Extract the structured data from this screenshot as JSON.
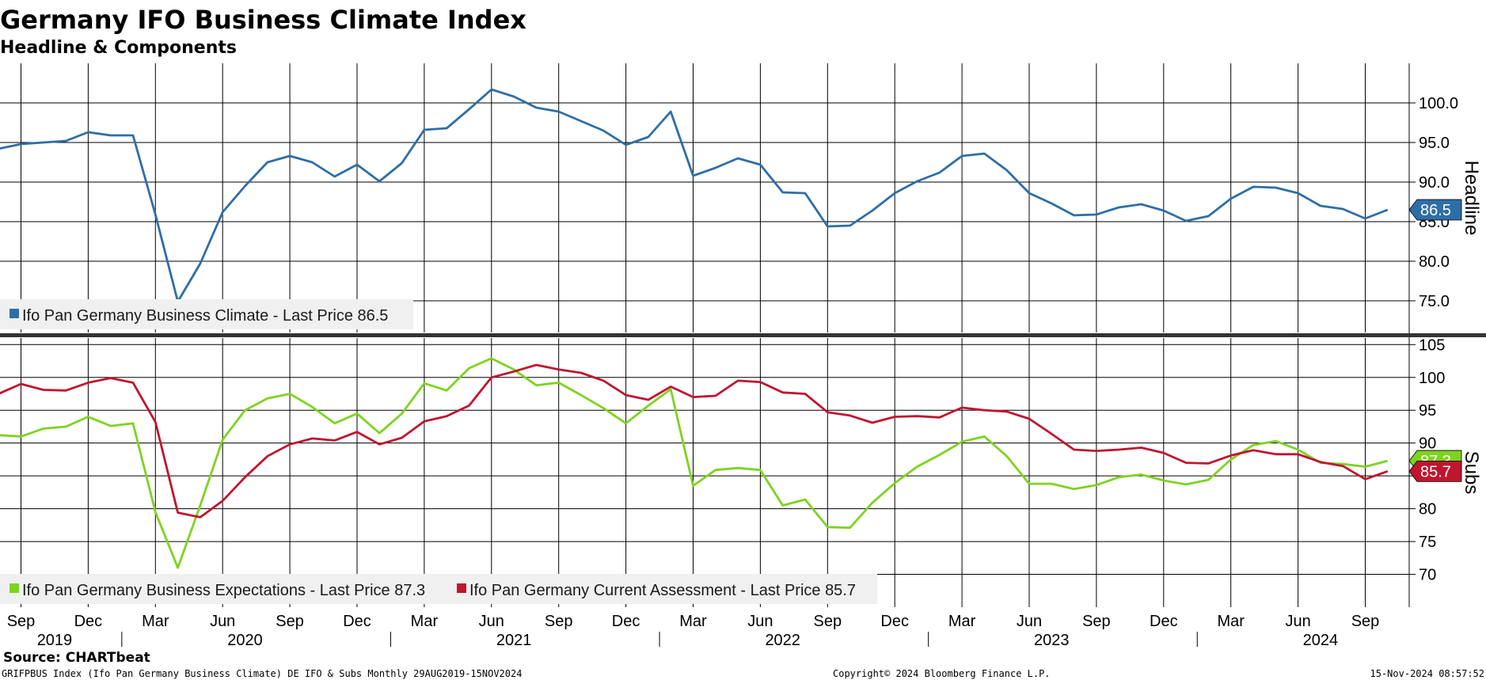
{
  "header": {
    "title": "Germany IFO Business Climate Index",
    "subtitle": "Headline & Components"
  },
  "footer": {
    "source": "Source: CHARTbeat",
    "ticker": "GRIFPBUS Index (Ifo Pan Germany Business Climate) DE IFO & Subs  Monthly 29AUG2019-15NOV2024",
    "copyright": "Copyright© 2024 Bloomberg Finance L.P.",
    "timestamp": "15-Nov-2024 08:57:52"
  },
  "colors": {
    "climate": "#2e6ea6",
    "expectations": "#7ed321",
    "assessment": "#c0152f",
    "grid": "#000000"
  },
  "x_axis": {
    "months": [
      "Sep",
      "Dec",
      "Mar",
      "Jun",
      "Sep",
      "Dec",
      "Mar",
      "Jun",
      "Sep",
      "Dec",
      "Mar",
      "Jun",
      "Sep",
      "Dec",
      "Mar",
      "Jun",
      "Sep",
      "Dec",
      "Mar",
      "Jun",
      "Sep"
    ],
    "years": [
      "2019",
      "2020",
      "2021",
      "2022",
      "2023",
      "2024"
    ]
  },
  "chart_data": [
    {
      "type": "line",
      "panel": "top",
      "ylabel": "Headline",
      "ylim": [
        71,
        105
      ],
      "yticks": [
        "75.0",
        "80.0",
        "85.0",
        "90.0",
        "95.0",
        "100.0"
      ],
      "x": [
        "2019-08",
        "2019-09",
        "2019-10",
        "2019-11",
        "2019-12",
        "2020-01",
        "2020-02",
        "2020-03",
        "2020-04",
        "2020-05",
        "2020-06",
        "2020-07",
        "2020-08",
        "2020-09",
        "2020-10",
        "2020-11",
        "2020-12",
        "2021-01",
        "2021-02",
        "2021-03",
        "2021-04",
        "2021-05",
        "2021-06",
        "2021-07",
        "2021-08",
        "2021-09",
        "2021-10",
        "2021-11",
        "2021-12",
        "2022-01",
        "2022-02",
        "2022-03",
        "2022-04",
        "2022-05",
        "2022-06",
        "2022-07",
        "2022-08",
        "2022-09",
        "2022-10",
        "2022-11",
        "2022-12",
        "2023-01",
        "2023-02",
        "2023-03",
        "2023-04",
        "2023-05",
        "2023-06",
        "2023-07",
        "2023-08",
        "2023-09",
        "2023-10",
        "2023-11",
        "2023-12",
        "2024-01",
        "2024-02",
        "2024-03",
        "2024-04",
        "2024-05",
        "2024-06",
        "2024-07",
        "2024-08",
        "2024-09",
        "2024-10"
      ],
      "series": [
        {
          "name": "Ifo Pan Germany Business Climate",
          "legend": "Ifo Pan Germany Business Climate - Last Price 86.5",
          "last": "86.5",
          "values": [
            94.2,
            94.8,
            95.0,
            95.2,
            96.3,
            95.9,
            95.9,
            85.9,
            74.9,
            79.7,
            86.2,
            89.5,
            92.5,
            93.3,
            92.5,
            90.7,
            92.2,
            90.1,
            92.4,
            96.6,
            96.8,
            99.2,
            101.7,
            100.8,
            99.4,
            98.9,
            97.7,
            96.5,
            94.7,
            95.7,
            98.9,
            90.8,
            91.8,
            93.0,
            92.2,
            88.7,
            88.6,
            84.4,
            84.5,
            86.4,
            88.6,
            90.1,
            91.2,
            93.3,
            93.6,
            91.5,
            88.6,
            87.3,
            85.8,
            85.9,
            86.8,
            87.2,
            86.4,
            85.1,
            85.7,
            87.9,
            89.4,
            89.3,
            88.6,
            87.0,
            86.6,
            85.4,
            86.5
          ]
        }
      ]
    },
    {
      "type": "line",
      "panel": "bottom",
      "ylabel": "Subs",
      "ylim": [
        65,
        106
      ],
      "yticks": [
        "70",
        "75",
        "80",
        "85",
        "90",
        "95",
        "100",
        "105"
      ],
      "series": [
        {
          "name": "Ifo Pan Germany Business Expectations",
          "legend": "Ifo Pan Germany Business Expectations - Last Price 87.3",
          "last": "87.3",
          "values": [
            91.2,
            91.0,
            92.2,
            92.5,
            94.0,
            92.6,
            93.0,
            79.5,
            71.0,
            80.5,
            90.5,
            95.0,
            96.8,
            97.5,
            95.5,
            93.0,
            94.5,
            91.5,
            94.5,
            99.1,
            98.0,
            101.4,
            102.9,
            101.2,
            98.8,
            99.2,
            97.3,
            95.3,
            93.0,
            95.7,
            98.2,
            83.5,
            85.9,
            86.2,
            85.9,
            80.5,
            81.4,
            77.2,
            77.1,
            80.9,
            83.9,
            86.4,
            88.2,
            90.2,
            91.0,
            88.0,
            83.8,
            83.8,
            83.0,
            83.6,
            84.8,
            85.2,
            84.3,
            83.7,
            84.4,
            87.5,
            89.7,
            90.3,
            89.0,
            87.0,
            86.8,
            86.4,
            87.3
          ]
        },
        {
          "name": "Ifo Pan Germany Current Assessment",
          "legend": "Ifo Pan Germany Current Assessment - Last Price 85.7",
          "last": "85.7",
          "values": [
            97.5,
            99.0,
            98.1,
            98.0,
            99.2,
            99.9,
            99.2,
            93.2,
            79.4,
            78.7,
            81.2,
            84.8,
            88.0,
            89.8,
            90.7,
            90.4,
            91.7,
            89.8,
            90.8,
            93.3,
            94.1,
            95.7,
            100.0,
            100.9,
            101.9,
            101.2,
            100.7,
            99.5,
            97.3,
            96.6,
            98.6,
            97.0,
            97.2,
            99.5,
            99.3,
            97.7,
            97.5,
            94.7,
            94.2,
            93.1,
            94.0,
            94.1,
            93.9,
            95.4,
            95.0,
            94.8,
            93.7,
            91.4,
            89.0,
            88.8,
            89.0,
            89.3,
            88.5,
            87.0,
            86.9,
            88.1,
            88.9,
            88.3,
            88.3,
            87.1,
            86.5,
            84.5,
            85.7
          ]
        }
      ]
    }
  ]
}
